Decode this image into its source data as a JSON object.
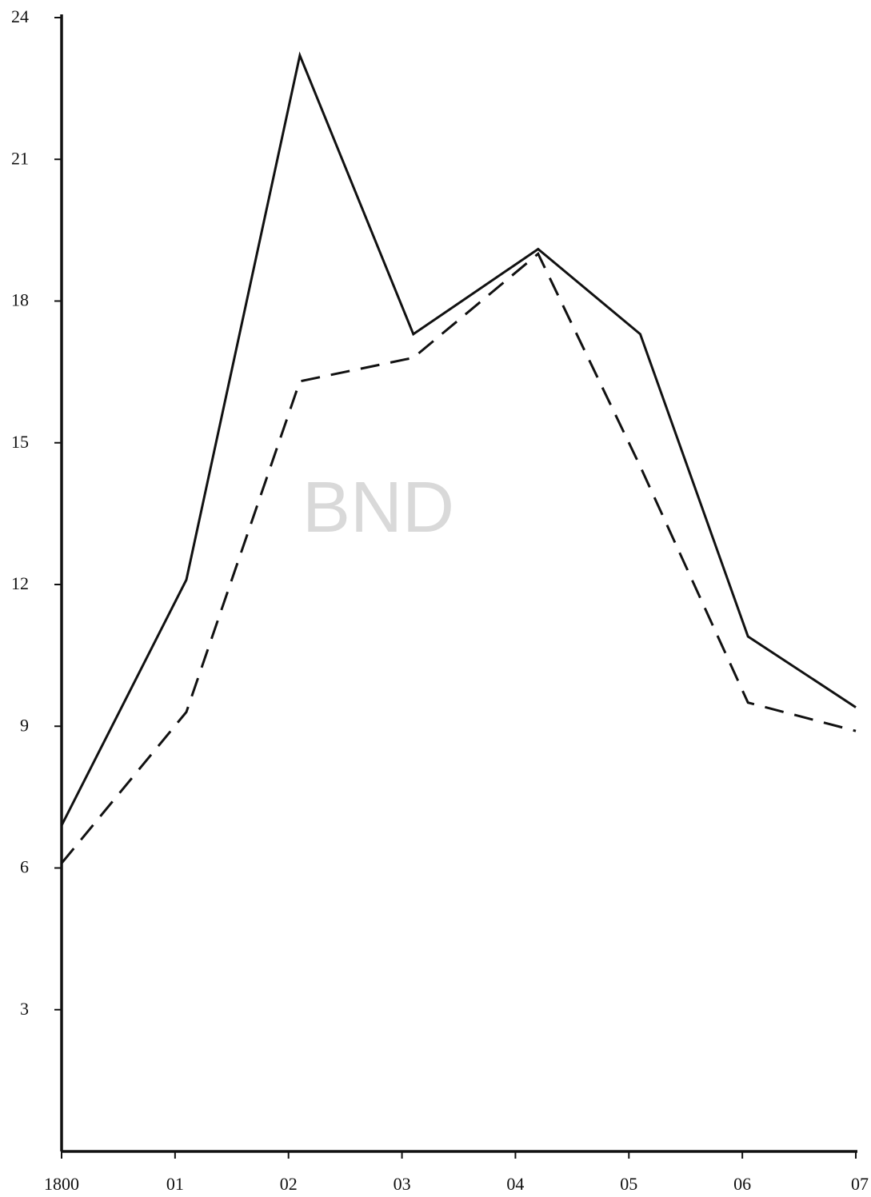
{
  "watermark": "BND",
  "chart_data": {
    "type": "line",
    "title": "",
    "xlabel": "",
    "ylabel": "",
    "categories": [
      "1800",
      "01",
      "02",
      "03",
      "04",
      "05",
      "06",
      "07"
    ],
    "x": [
      1800,
      1801,
      1802,
      1803,
      1804,
      1805,
      1806,
      1807
    ],
    "yticks": [
      3,
      6,
      9,
      12,
      15,
      18,
      21,
      24
    ],
    "ylim": [
      0,
      24
    ],
    "xlim": [
      1800,
      1807
    ],
    "grid": false,
    "series": [
      {
        "style": "solid",
        "color": "#111111",
        "points": [
          [
            1800,
            6.9
          ],
          [
            1801.1,
            12.1
          ],
          [
            1802.1,
            23.2
          ],
          [
            1803.1,
            17.3
          ],
          [
            1804.2,
            19.1
          ],
          [
            1805.1,
            17.3
          ],
          [
            1806.05,
            10.9
          ],
          [
            1807,
            9.4
          ]
        ]
      },
      {
        "style": "dashed",
        "color": "#111111",
        "points": [
          [
            1800,
            6.1
          ],
          [
            1801.1,
            9.3
          ],
          [
            1802.1,
            16.3
          ],
          [
            1803.1,
            16.8
          ],
          [
            1804.2,
            19.0
          ],
          [
            1805.1,
            14.5
          ],
          [
            1806.05,
            9.5
          ],
          [
            1807,
            8.9
          ]
        ]
      }
    ]
  }
}
